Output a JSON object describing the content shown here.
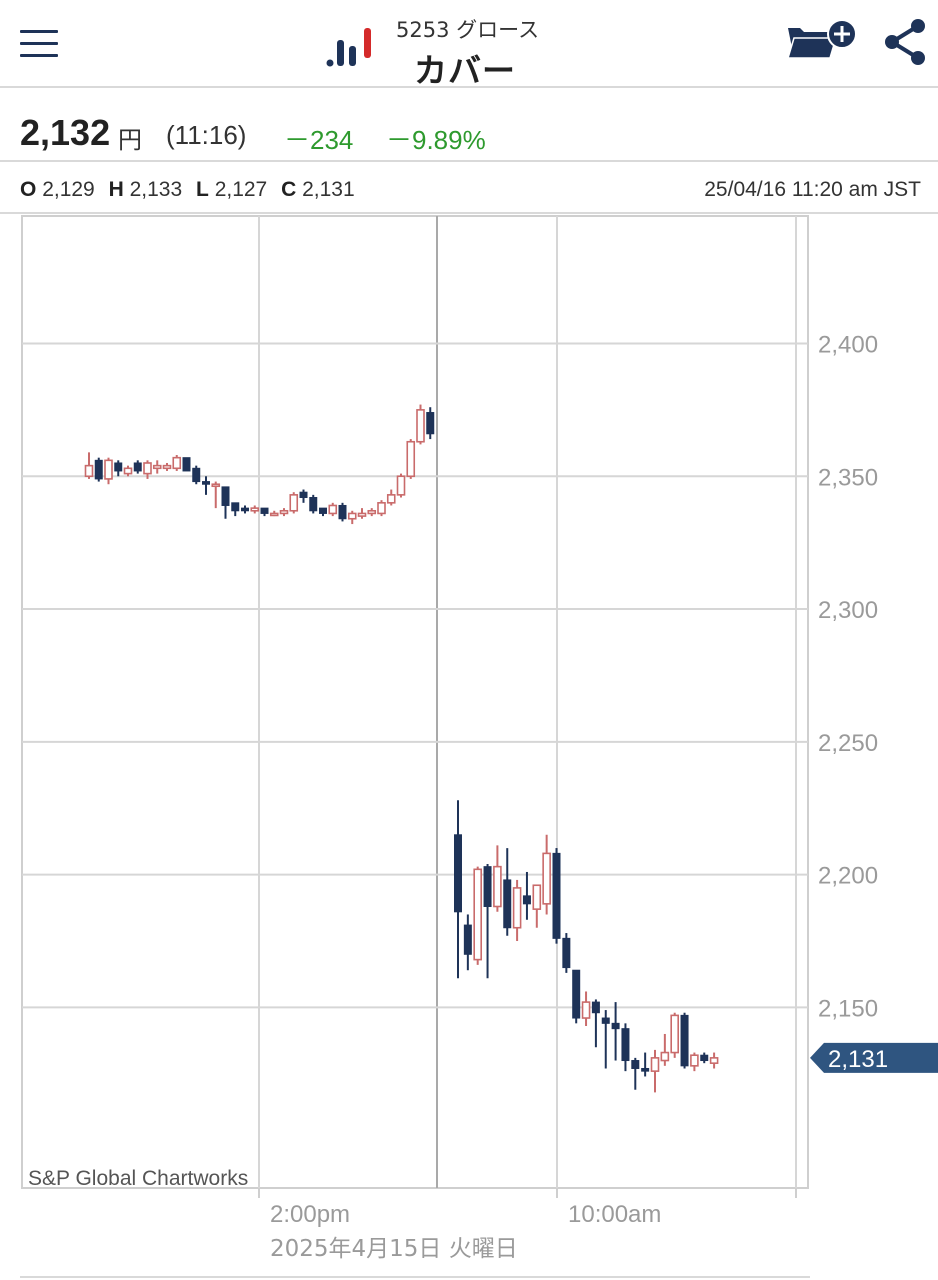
{
  "header": {
    "menu_icon": "hamburger-menu-icon",
    "logo_icon": "bar-chart-logo-icon",
    "ticker_code": "5253 グロース",
    "stock_name": "カバー",
    "folder_icon": "folder-add-icon",
    "share_icon": "share-icon"
  },
  "quote": {
    "price": "2,132",
    "currency": "円",
    "time": "(11:16)",
    "change_abs": "－234",
    "change_pct": "－9.89%",
    "change_color": "#2e9a2e"
  },
  "ohlc": {
    "o_label": "O",
    "o_value": "2,129",
    "h_label": "H",
    "h_value": "2,133",
    "l_label": "L",
    "l_value": "2,127",
    "c_label": "C",
    "c_value": "2,131",
    "timestamp": "25/04/16 11:20 am JST"
  },
  "chart_data": {
    "type": "candlestick",
    "ylim": [
      2082,
      2448
    ],
    "y_ticks": [
      2400,
      2350,
      2300,
      2250,
      2200,
      2150
    ],
    "y_tick_labels": [
      "2,400",
      "2,350",
      "2,300",
      "2,250",
      "2,200",
      "2,150"
    ],
    "x_tick_labels": [
      "2:00pm",
      "10:00am"
    ],
    "date_label": "2025年4月15日 火曜日",
    "current_price_label": "2,131",
    "current_price": 2131,
    "watermark": "S&P Global Chartworks",
    "colors": {
      "up": "#c96b6b",
      "down": "#1e3358",
      "price_tag": "#2f5580"
    },
    "sessions": [
      {
        "name": "2025-04-15",
        "candles": [
          {
            "o": 2350,
            "h": 2359,
            "l": 2349,
            "c": 2354
          },
          {
            "o": 2356,
            "h": 2357,
            "l": 2348,
            "c": 2349
          },
          {
            "o": 2349,
            "h": 2357,
            "l": 2347,
            "c": 2356
          },
          {
            "o": 2355,
            "h": 2356,
            "l": 2350,
            "c": 2352
          },
          {
            "o": 2351,
            "h": 2354,
            "l": 2350,
            "c": 2353
          },
          {
            "o": 2355,
            "h": 2356,
            "l": 2351,
            "c": 2352
          },
          {
            "o": 2351,
            "h": 2356,
            "l": 2349,
            "c": 2355
          },
          {
            "o": 2353,
            "h": 2356,
            "l": 2351,
            "c": 2354
          },
          {
            "o": 2353,
            "h": 2355,
            "l": 2352,
            "c": 2354
          },
          {
            "o": 2353,
            "h": 2358,
            "l": 2352,
            "c": 2357
          },
          {
            "o": 2357,
            "h": 2357,
            "l": 2352,
            "c": 2352
          },
          {
            "o": 2353,
            "h": 2354,
            "l": 2347,
            "c": 2348
          },
          {
            "o": 2348,
            "h": 2350,
            "l": 2343,
            "c": 2347
          },
          {
            "o": 2347,
            "h": 2348,
            "l": 2338,
            "c": 2347
          },
          {
            "o": 2346,
            "h": 2346,
            "l": 2334,
            "c": 2339
          },
          {
            "o": 2340,
            "h": 2340,
            "l": 2335,
            "c": 2337
          },
          {
            "o": 2338,
            "h": 2339,
            "l": 2336,
            "c": 2337
          },
          {
            "o": 2337,
            "h": 2339,
            "l": 2336,
            "c": 2338
          },
          {
            "o": 2338,
            "h": 2338,
            "l": 2335,
            "c": 2336
          },
          {
            "o": 2336,
            "h": 2337,
            "l": 2335,
            "c": 2336
          },
          {
            "o": 2336,
            "h": 2338,
            "l": 2335,
            "c": 2337
          },
          {
            "o": 2337,
            "h": 2344,
            "l": 2336,
            "c": 2343
          },
          {
            "o": 2344,
            "h": 2345,
            "l": 2340,
            "c": 2342
          },
          {
            "o": 2342,
            "h": 2343,
            "l": 2336,
            "c": 2337
          },
          {
            "o": 2338,
            "h": 2338,
            "l": 2335,
            "c": 2336
          },
          {
            "o": 2336,
            "h": 2340,
            "l": 2335,
            "c": 2339
          },
          {
            "o": 2339,
            "h": 2340,
            "l": 2333,
            "c": 2334
          },
          {
            "o": 2334,
            "h": 2337,
            "l": 2332,
            "c": 2336
          },
          {
            "o": 2335,
            "h": 2338,
            "l": 2334,
            "c": 2336
          },
          {
            "o": 2336,
            "h": 2338,
            "l": 2335,
            "c": 2337
          },
          {
            "o": 2336,
            "h": 2341,
            "l": 2335,
            "c": 2340
          },
          {
            "o": 2340,
            "h": 2345,
            "l": 2339,
            "c": 2343
          },
          {
            "o": 2343,
            "h": 2351,
            "l": 2342,
            "c": 2350
          },
          {
            "o": 2350,
            "h": 2364,
            "l": 2349,
            "c": 2363
          },
          {
            "o": 2363,
            "h": 2377,
            "l": 2362,
            "c": 2375
          },
          {
            "o": 2374,
            "h": 2376,
            "l": 2364,
            "c": 2366
          }
        ]
      },
      {
        "name": "2025-04-16",
        "candles": [
          {
            "o": 2215,
            "h": 2228,
            "l": 2161,
            "c": 2186
          },
          {
            "o": 2181,
            "h": 2185,
            "l": 2164,
            "c": 2170
          },
          {
            "o": 2168,
            "h": 2203,
            "l": 2166,
            "c": 2202
          },
          {
            "o": 2203,
            "h": 2204,
            "l": 2161,
            "c": 2188
          },
          {
            "o": 2188,
            "h": 2211,
            "l": 2186,
            "c": 2203
          },
          {
            "o": 2198,
            "h": 2210,
            "l": 2177,
            "c": 2180
          },
          {
            "o": 2180,
            "h": 2198,
            "l": 2175,
            "c": 2195
          },
          {
            "o": 2192,
            "h": 2201,
            "l": 2183,
            "c": 2189
          },
          {
            "o": 2187,
            "h": 2196,
            "l": 2180,
            "c": 2196
          },
          {
            "o": 2189,
            "h": 2215,
            "l": 2185,
            "c": 2208
          },
          {
            "o": 2208,
            "h": 2210,
            "l": 2174,
            "c": 2176
          },
          {
            "o": 2176,
            "h": 2178,
            "l": 2163,
            "c": 2165
          },
          {
            "o": 2164,
            "h": 2164,
            "l": 2144,
            "c": 2146
          },
          {
            "o": 2146,
            "h": 2156,
            "l": 2143,
            "c": 2152
          },
          {
            "o": 2152,
            "h": 2153,
            "l": 2135,
            "c": 2148
          },
          {
            "o": 2146,
            "h": 2149,
            "l": 2127,
            "c": 2144
          },
          {
            "o": 2144,
            "h": 2152,
            "l": 2130,
            "c": 2142
          },
          {
            "o": 2142,
            "h": 2144,
            "l": 2126,
            "c": 2130
          },
          {
            "o": 2130,
            "h": 2131,
            "l": 2119,
            "c": 2127
          },
          {
            "o": 2127,
            "h": 2133,
            "l": 2124,
            "c": 2126
          },
          {
            "o": 2126,
            "h": 2134,
            "l": 2118,
            "c": 2131
          },
          {
            "o": 2130,
            "h": 2140,
            "l": 2128,
            "c": 2133
          },
          {
            "o": 2133,
            "h": 2148,
            "l": 2131,
            "c": 2147
          },
          {
            "o": 2147,
            "h": 2148,
            "l": 2127,
            "c": 2128
          },
          {
            "o": 2128,
            "h": 2133,
            "l": 2126,
            "c": 2132
          },
          {
            "o": 2132,
            "h": 2133,
            "l": 2129,
            "c": 2130
          },
          {
            "o": 2129,
            "h": 2133,
            "l": 2127,
            "c": 2131
          }
        ]
      }
    ]
  }
}
